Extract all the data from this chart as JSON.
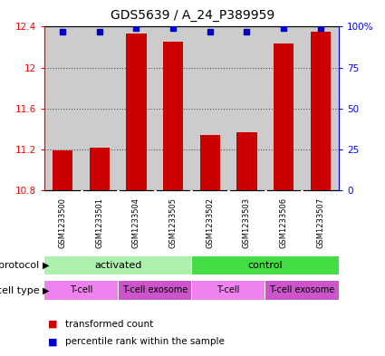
{
  "title": "GDS5639 / A_24_P389959",
  "samples": [
    "GSM1233500",
    "GSM1233501",
    "GSM1233504",
    "GSM1233505",
    "GSM1233502",
    "GSM1233503",
    "GSM1233506",
    "GSM1233507"
  ],
  "red_values": [
    11.19,
    11.22,
    12.33,
    12.25,
    11.34,
    11.37,
    12.24,
    12.35
  ],
  "blue_values": [
    97,
    97,
    99,
    99,
    97,
    97,
    99,
    99
  ],
  "ylim_left": [
    10.8,
    12.4
  ],
  "ylim_right": [
    0,
    100
  ],
  "yticks_left": [
    10.8,
    11.2,
    11.6,
    12.0,
    12.4
  ],
  "yticks_right": [
    0,
    25,
    50,
    75,
    100
  ],
  "ytick_labels_left": [
    "10.8",
    "11.2",
    "11.6",
    "12",
    "12.4"
  ],
  "ytick_labels_right": [
    "0",
    "25",
    "50",
    "75",
    "100%"
  ],
  "protocol_groups": [
    {
      "label": "activated",
      "start": 0,
      "end": 4,
      "color": "#aef0ae"
    },
    {
      "label": "control",
      "start": 4,
      "end": 8,
      "color": "#44dd44"
    }
  ],
  "cell_type_groups": [
    {
      "label": "T-cell",
      "start": 0,
      "end": 2,
      "color": "#ee82ee"
    },
    {
      "label": "T-cell exosome",
      "start": 2,
      "end": 4,
      "color": "#cc55cc"
    },
    {
      "label": "T-cell",
      "start": 4,
      "end": 6,
      "color": "#ee82ee"
    },
    {
      "label": "T-cell exosome",
      "start": 6,
      "end": 8,
      "color": "#cc55cc"
    }
  ],
  "bar_color": "#cc0000",
  "dot_color": "#0000cc",
  "base_value": 10.8,
  "grid_color": "#888888",
  "bg_color": "#cccccc",
  "legend_red": "transformed count",
  "legend_blue": "percentile rank within the sample",
  "protocol_label": "protocol",
  "cell_type_label": "cell type"
}
